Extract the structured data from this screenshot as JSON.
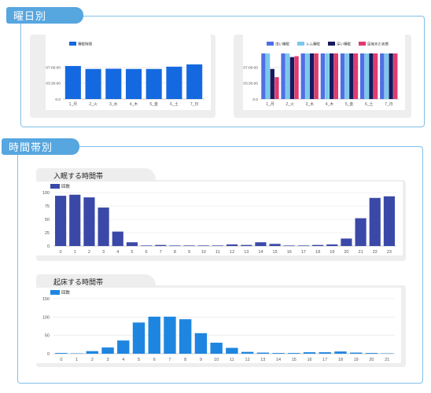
{
  "sections": {
    "weekday": {
      "title": "曜日別"
    },
    "timezone": {
      "title": "時間帯別"
    }
  },
  "colors": {
    "accent": "#56a6e0",
    "sleep_bar": "#1469e0",
    "bedtime_bar": "#3a49a8",
    "wake_bar": "#1e86e0"
  },
  "chart_data": [
    {
      "type": "bar",
      "title": "",
      "legend": "睡眠時間",
      "categories": [
        "1_月",
        "2_火",
        "3_水",
        "4_木",
        "5_金",
        "6_土",
        "7_日"
      ],
      "values": [
        7.25,
        6.6,
        6.65,
        6.6,
        6.6,
        7.1,
        7.6
      ],
      "ytick_labels": [
        "07:00:00",
        "03:30:00",
        "0.0"
      ],
      "ylim": [
        0,
        10
      ]
    },
    {
      "type": "bar",
      "title": "",
      "categories": [
        "1_月",
        "2_火",
        "3_水",
        "4_木",
        "5_金",
        "6_土",
        "7_日"
      ],
      "series": [
        {
          "name": "浅い睡眠",
          "color": "#4f6fe6",
          "values": [
            10.0,
            10.0,
            10.0,
            10.0,
            10.0,
            10.0,
            10.0
          ]
        },
        {
          "name": "レム睡眠",
          "color": "#7cc8ea",
          "values": [
            10.0,
            10.0,
            10.0,
            10.0,
            10.0,
            10.0,
            10.0
          ]
        },
        {
          "name": "深い睡眠",
          "color": "#151a5e",
          "values": [
            6.6,
            9.2,
            10.0,
            10.0,
            10.0,
            10.0,
            10.0
          ]
        },
        {
          "name": "目覚めた状態",
          "color": "#e03a6f",
          "values": [
            4.8,
            9.4,
            10.0,
            10.0,
            10.0,
            10.0,
            10.0
          ]
        }
      ],
      "ytick_labels": [
        "07:00:00",
        "03:30:00",
        "0.0"
      ],
      "ylim": [
        0,
        10
      ]
    },
    {
      "type": "bar",
      "title": "入眠する時間帯",
      "legend": "回数",
      "categories": [
        "0",
        "1",
        "2",
        "3",
        "4",
        "5",
        "6",
        "7",
        "8",
        "9",
        "10",
        "11",
        "12",
        "13",
        "14",
        "15",
        "16",
        "17",
        "18",
        "19",
        "20",
        "21",
        "22",
        "23"
      ],
      "values": [
        94,
        96,
        91,
        72,
        27,
        7,
        1,
        2,
        1,
        1,
        1,
        1,
        3,
        2,
        7,
        4,
        1,
        1,
        2,
        3,
        14,
        52,
        90,
        93
      ],
      "yticks": [
        0,
        25,
        50,
        75,
        100
      ],
      "ylim": [
        0,
        100
      ]
    },
    {
      "type": "bar",
      "title": "起床する時間帯",
      "legend": "回数",
      "categories": [
        "0",
        "1",
        "2",
        "3",
        "4",
        "5",
        "6",
        "7",
        "8",
        "9",
        "10",
        "11",
        "12",
        "13",
        "14",
        "15",
        "16",
        "17",
        "18",
        "19",
        "20",
        "21"
      ],
      "values": [
        2,
        1,
        7,
        17,
        36,
        85,
        101,
        101,
        94,
        56,
        30,
        16,
        5,
        3,
        2,
        2,
        4,
        4,
        6,
        3,
        2,
        1
      ],
      "yticks": [
        0,
        50,
        100,
        150
      ],
      "ylim": [
        0,
        150
      ]
    }
  ]
}
